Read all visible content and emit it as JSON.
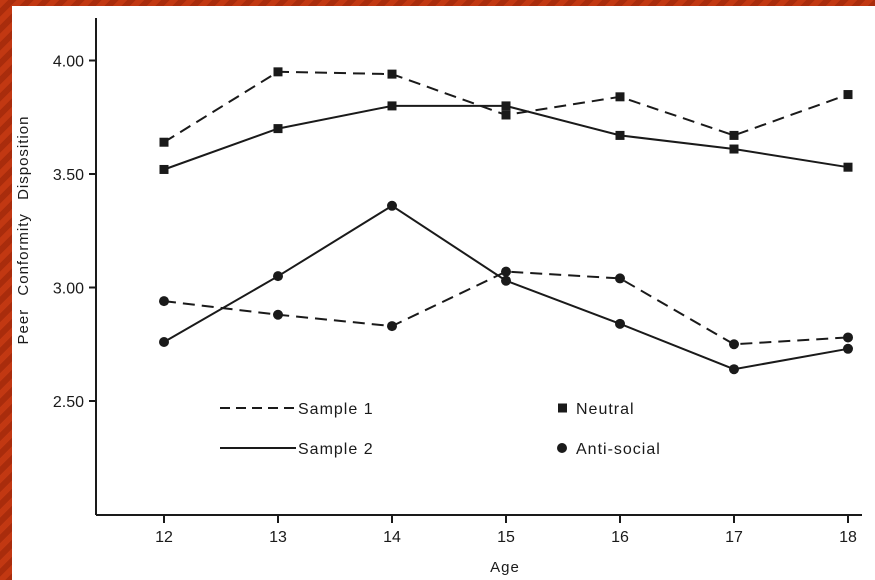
{
  "chart_data": {
    "type": "line",
    "title": "",
    "xlabel": "Age",
    "ylabel": "Peer Conformity Disposition",
    "x": [
      12,
      13,
      14,
      15,
      16,
      17,
      18
    ],
    "x_tick_labels": [
      "12",
      "13",
      "14",
      "15",
      "16",
      "17",
      "18"
    ],
    "y_tick_values": [
      2.5,
      3.0,
      3.5,
      4.0
    ],
    "y_tick_labels": [
      "2.50",
      "3.00",
      "3.50",
      "4.00"
    ],
    "ylim": [
      2.0,
      4.2
    ],
    "grid": false,
    "legend_placement": "bottom-left inside plot",
    "legend": {
      "line_styles": [
        {
          "label": "Sample 1",
          "dash": "dashed"
        },
        {
          "label": "Sample 2",
          "dash": "solid"
        }
      ],
      "markers": [
        {
          "label": "Neutral",
          "marker": "square"
        },
        {
          "label": "Anti-social",
          "marker": "circle"
        }
      ]
    },
    "series": [
      {
        "sample": "Sample 1",
        "condition": "Neutral",
        "dash": "dashed",
        "marker": "square",
        "values": [
          3.64,
          3.95,
          3.94,
          3.76,
          3.84,
          3.67,
          3.85
        ]
      },
      {
        "sample": "Sample 2",
        "condition": "Neutral",
        "dash": "solid",
        "marker": "square",
        "values": [
          3.52,
          3.7,
          3.8,
          3.8,
          3.67,
          3.61,
          3.53
        ]
      },
      {
        "sample": "Sample 1",
        "condition": "Anti-social",
        "dash": "dashed",
        "marker": "circle",
        "values": [
          2.94,
          2.88,
          2.83,
          3.07,
          3.04,
          2.75,
          2.78
        ]
      },
      {
        "sample": "Sample 2",
        "condition": "Anti-social",
        "dash": "solid",
        "marker": "circle",
        "values": [
          2.76,
          3.05,
          3.36,
          3.03,
          2.84,
          2.64,
          2.73
        ]
      }
    ]
  },
  "colors": {
    "frame": "#b8300f",
    "ink": "#1a1a1a",
    "background": "#ffffff"
  }
}
